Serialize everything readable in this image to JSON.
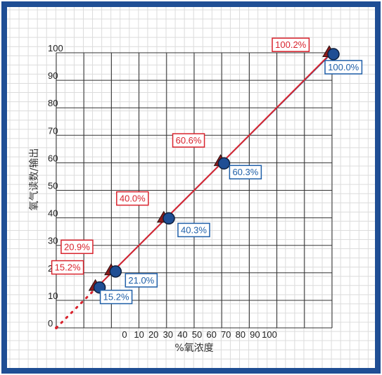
{
  "chart_data": {
    "type": "line",
    "title": "",
    "xlabel": "%氧浓度",
    "ylabel": "氧气读数/输出",
    "x_tick_labels": [
      "0",
      "10",
      "20",
      "30",
      "40",
      "50",
      "60",
      "70",
      "80",
      "90",
      "100"
    ],
    "y_tick_labels": [
      "0",
      "10",
      "20",
      "30",
      "40",
      "50",
      "60",
      "70",
      "80",
      "90",
      "100"
    ],
    "xlim": [
      0,
      100
    ],
    "ylim": [
      0,
      100
    ],
    "grid": true,
    "series": [
      {
        "marker": "triangle",
        "color": "#d9232d",
        "x": [
          15.2,
          20.9,
          40.0,
          60.6,
          100.0
        ],
        "y": [
          15.2,
          20.9,
          40.0,
          60.6,
          100.2
        ],
        "labels": [
          "15.2%",
          "20.9%",
          "40.0%",
          "60.6%",
          "100.2%"
        ]
      },
      {
        "marker": "circle",
        "color": "#1f5fa8",
        "x": [
          15.2,
          21.0,
          40.3,
          60.3,
          100.0
        ],
        "y": [
          15.2,
          21.0,
          40.3,
          60.3,
          100.0
        ],
        "labels": [
          "15.2%",
          "21.0%",
          "40.3%",
          "60.3%",
          "100.0%"
        ]
      }
    ],
    "extrapolation": {
      "style": "dotted",
      "color": "#d9232d",
      "from": [
        0,
        0
      ],
      "to": [
        15.2,
        15.2
      ]
    }
  },
  "colors": {
    "frame": "#1f4e94",
    "red": "#d9232d",
    "blue": "#1f5fa8",
    "marker_fill": "#1f4e94"
  }
}
